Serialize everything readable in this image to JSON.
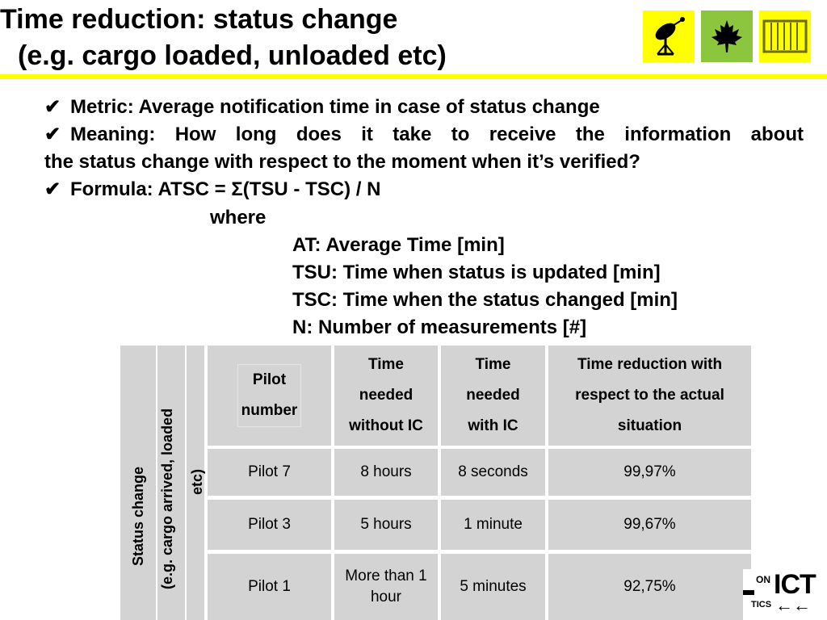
{
  "title": {
    "line1": "Time reduction: status change",
    "line2": "(e.g. cargo loaded, unloaded etc)"
  },
  "logos": [
    {
      "icon": "satellite-dish-icon",
      "bg": "#ffff00"
    },
    {
      "icon": "maple-leaf-icon",
      "bg": "#8cc63f"
    },
    {
      "icon": "shipping-container-icon",
      "bg": "#ffff00"
    }
  ],
  "bullets": {
    "metric": "Metric: Average notification time in case of status change",
    "meaning_line1": "Meaning: How long does it take to receive the information about",
    "meaning_line2": "the status change with respect to the moment when it’s verified?",
    "formula": "Formula: ATSC = Σ(TSU - TSC) / N",
    "where": "where",
    "definitions": [
      "AT: Average Time [min]",
      "TSU: Time when status is updated [min]",
      "TSC: Time when the status changed [min]",
      "N: Number of measurements [#]"
    ]
  },
  "table": {
    "row_label_1": "Status change",
    "row_label_2": "(e.g. cargo arrived, loaded",
    "row_label_3": "etc)",
    "headers": {
      "pilot_1": "Pilot",
      "pilot_2": "number",
      "without_1": "Time",
      "without_2": "needed",
      "without_3": "without IC",
      "with_1": "Time",
      "with_2": "needed",
      "with_3": "with IC",
      "reduction_1": "Time reduction with",
      "reduction_2": "respect to the actual",
      "reduction_3": "situation"
    },
    "rows": [
      {
        "pilot": "Pilot 7",
        "without": "8 hours",
        "without_2": "",
        "with": "8 seconds",
        "reduction": "99,97%"
      },
      {
        "pilot": "Pilot 3",
        "without": "5 hours",
        "without_2": "",
        "with": "1 minute",
        "reduction": "99,67%"
      },
      {
        "pilot": "Pilot 1",
        "without": "More than 1",
        "without_2": "hour",
        "with": "5 minutes",
        "reduction": "92,75%"
      }
    ]
  },
  "footer_logo": {
    "on": "ON",
    "ict": "ICT",
    "tics": "TICS",
    "arrows": "←←"
  }
}
